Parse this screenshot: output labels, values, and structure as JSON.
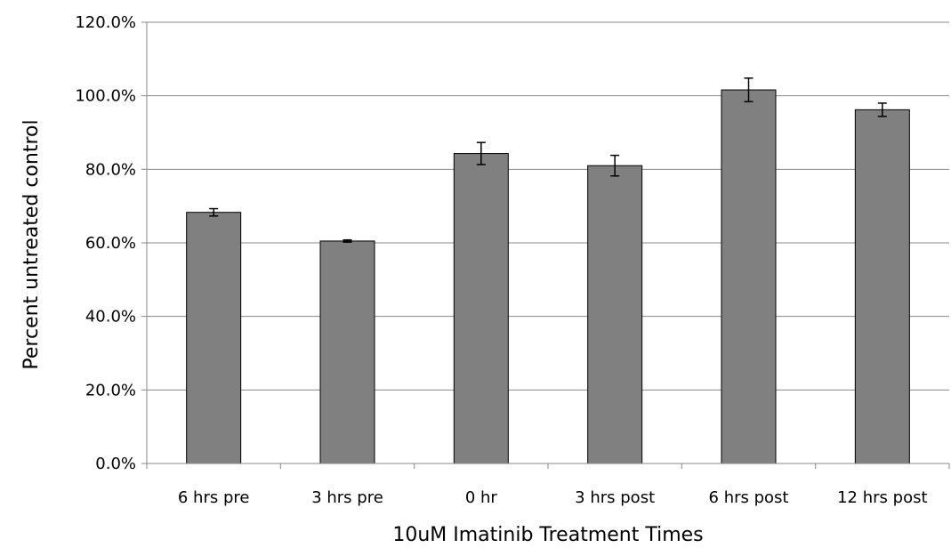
{
  "chart_data": {
    "type": "bar",
    "title": "",
    "xlabel": "10uM Imatinib Treatment Times",
    "ylabel": "Percent untreated control",
    "categories": [
      "6 hrs pre",
      "3 hrs pre",
      "0 hr",
      "3 hrs post",
      "6 hrs post",
      "12 hrs post"
    ],
    "values": [
      68.3,
      60.5,
      84.3,
      81.0,
      101.6,
      96.2
    ],
    "errors": [
      1.0,
      0.3,
      3.0,
      2.8,
      3.2,
      1.8
    ],
    "ylim": [
      0,
      120
    ],
    "yticks": [
      0,
      20,
      40,
      60,
      80,
      100,
      120
    ],
    "ytick_labels": [
      "0.0%",
      "20.0%",
      "40.0%",
      "60.0%",
      "80.0%",
      "100.0%",
      "120.0%"
    ],
    "grid": true,
    "bar_color": "#808080",
    "bar_edge_color": "#000000",
    "grid_color": "#888888"
  }
}
